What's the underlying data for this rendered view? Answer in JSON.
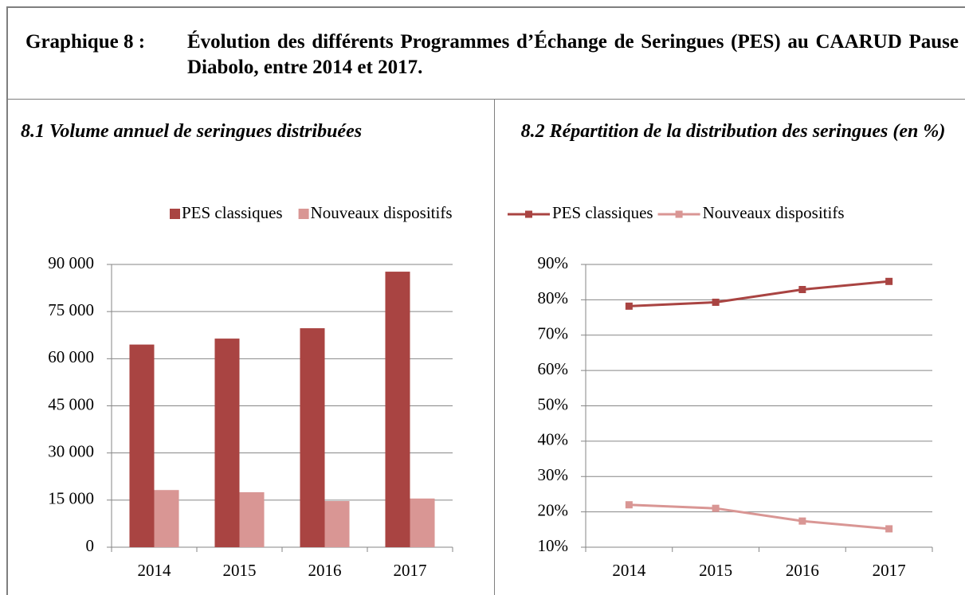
{
  "header": {
    "label": "Graphique 8 :",
    "title": "Évolution des différents Programmes d’Échange de Seringues (PES) au CAARUD Pause Diabolo, entre 2014 et 2017."
  },
  "chart_data": [
    {
      "type": "bar",
      "title": "8.1 Volume annuel de seringues distribuées",
      "categories": [
        "2014",
        "2015",
        "2016",
        "2017"
      ],
      "series": [
        {
          "name": "PES classiques",
          "color": "#a94442",
          "values": [
            64500,
            66400,
            69700,
            87700
          ]
        },
        {
          "name": "Nouveaux dispositifs",
          "color": "#d99694",
          "values": [
            18200,
            17500,
            14700,
            15500
          ]
        }
      ],
      "ylim": [
        0,
        90000
      ],
      "yticks": [
        0,
        {
          "value": 15000,
          "label": "15 000"
        },
        {
          "value": 30000,
          "label": "30 000"
        },
        {
          "value": 45000,
          "label": "45 000"
        },
        {
          "value": 60000,
          "label": "60 000"
        },
        {
          "value": 75000,
          "label": "75 000"
        },
        {
          "value": 90000,
          "label": "90 000"
        }
      ],
      "grid": true,
      "legend": "top"
    },
    {
      "type": "line",
      "title": "8.2 Répartition de la distribution des seringues (en %)",
      "categories": [
        "2014",
        "2015",
        "2016",
        "2017"
      ],
      "series": [
        {
          "name": "PES classiques",
          "color": "#a94442",
          "values": [
            78.2,
            79.3,
            82.9,
            85.2
          ]
        },
        {
          "name": "Nouveaux dispositifs",
          "color": "#d99694",
          "values": [
            22,
            21,
            17.4,
            15.2
          ]
        }
      ],
      "ylim": [
        10,
        90
      ],
      "yticks": [
        {
          "value": 10,
          "label": "10%"
        },
        {
          "value": 20,
          "label": "20%"
        },
        {
          "value": 30,
          "label": "30%"
        },
        {
          "value": 40,
          "label": "40%"
        },
        {
          "value": 50,
          "label": "50%"
        },
        {
          "value": 60,
          "label": "60%"
        },
        {
          "value": 70,
          "label": "70%"
        },
        {
          "value": 80,
          "label": "80%"
        },
        {
          "value": 90,
          "label": "90%"
        }
      ],
      "grid": true,
      "legend": "top"
    }
  ]
}
